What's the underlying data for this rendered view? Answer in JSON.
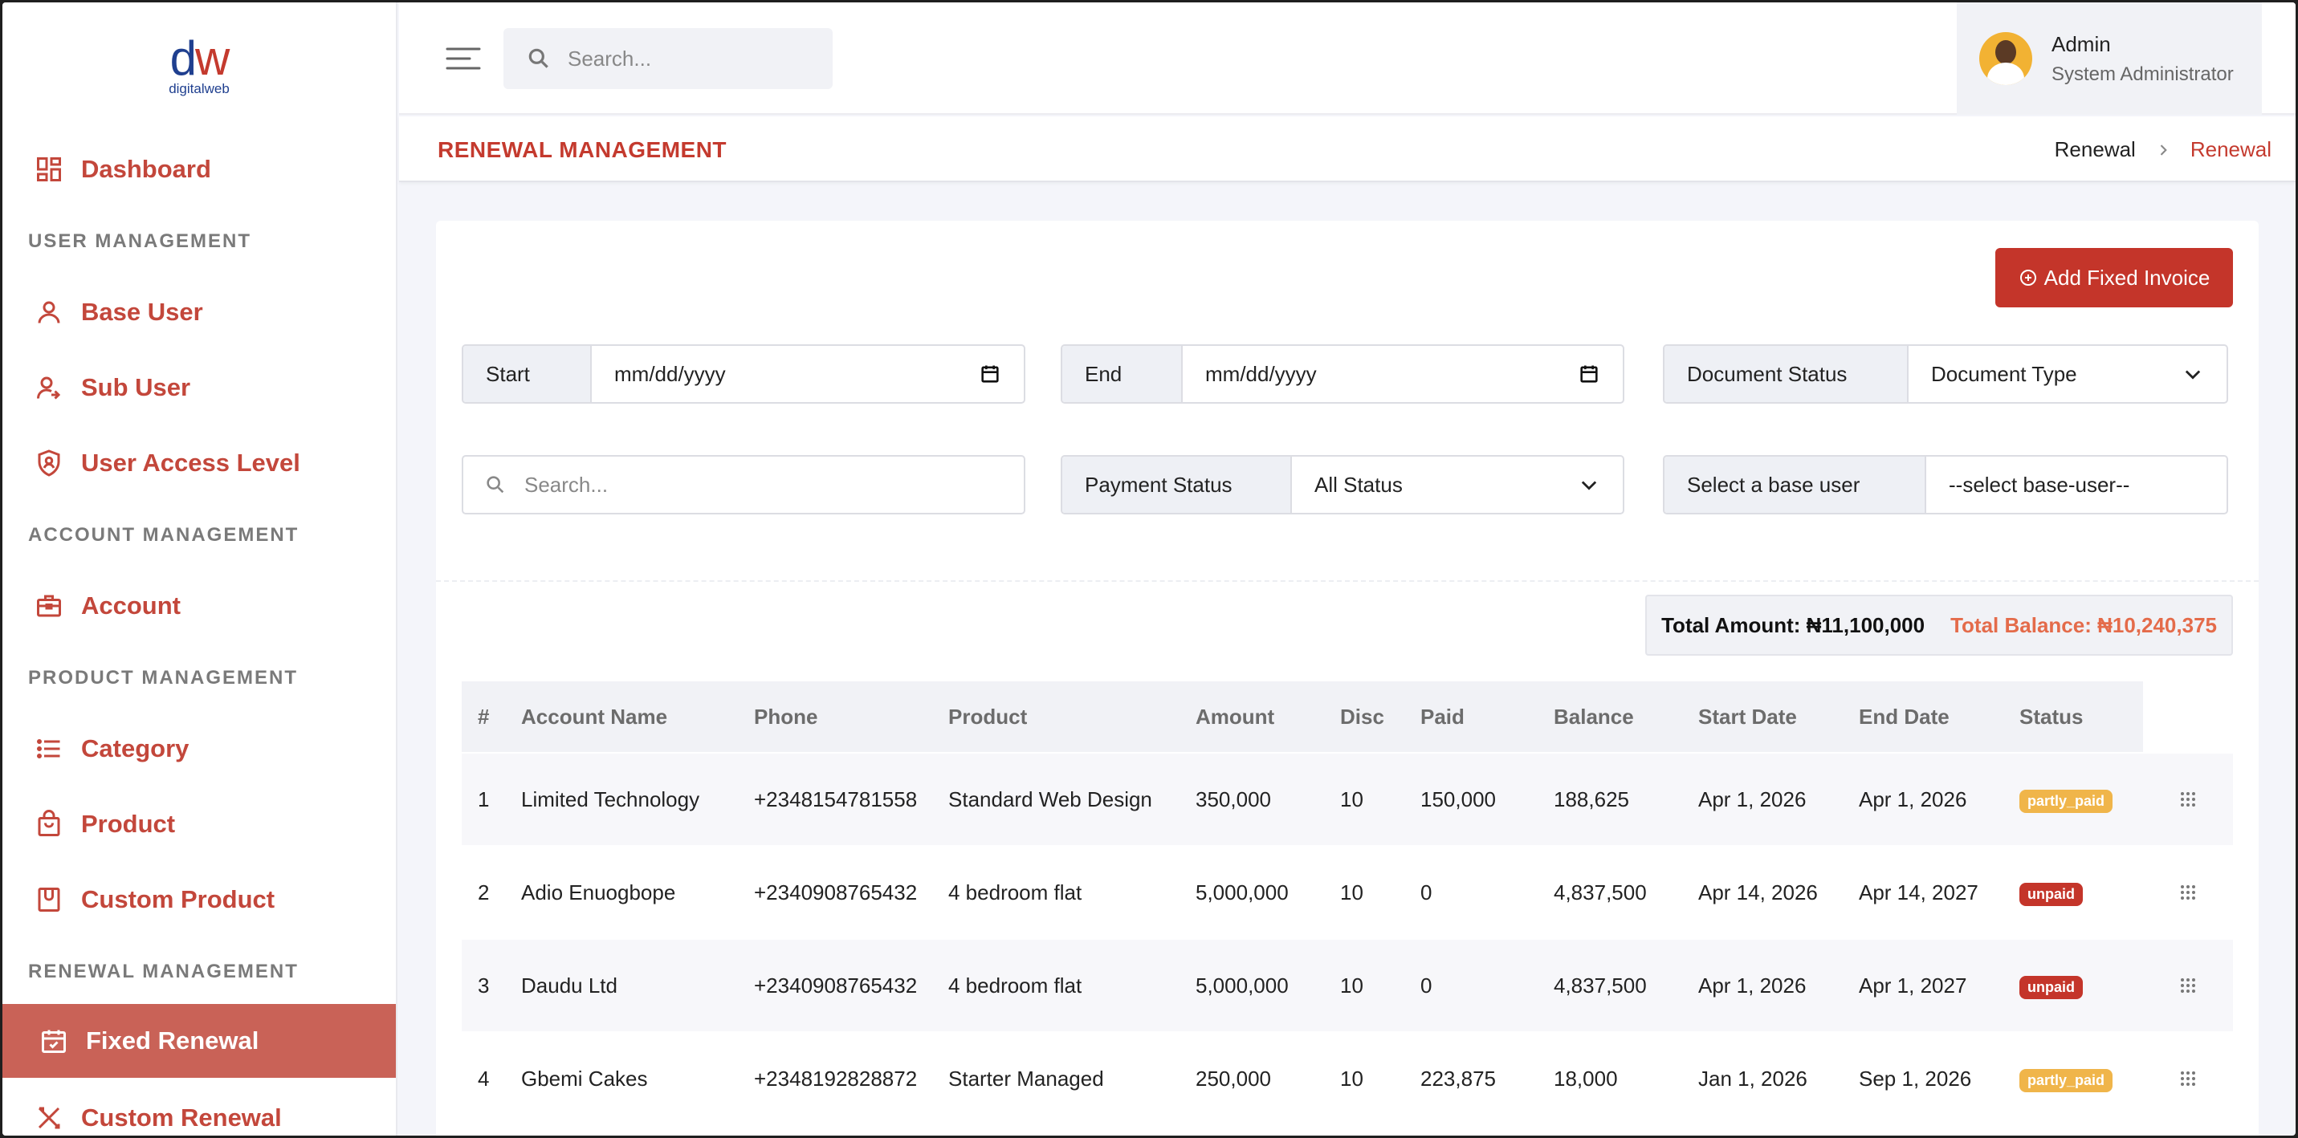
{
  "logo": {
    "mark_d": "d",
    "mark_w": "w",
    "text": "digitalweb"
  },
  "sidebar": {
    "items": [
      {
        "label": "Dashboard",
        "icon": "dashboard-icon"
      },
      {
        "label": "Base User",
        "icon": "user-icon"
      },
      {
        "label": "Sub User",
        "icon": "user-plus-icon"
      },
      {
        "label": "User Access Level",
        "icon": "shield-user-icon"
      },
      {
        "label": "Account",
        "icon": "briefcase-icon"
      },
      {
        "label": "Category",
        "icon": "list-icon"
      },
      {
        "label": "Product",
        "icon": "bag-icon"
      },
      {
        "label": "Custom Product",
        "icon": "box-icon"
      },
      {
        "label": "Fixed Renewal",
        "icon": "calendar-icon"
      },
      {
        "label": "Custom Renewal",
        "icon": "tools-icon"
      }
    ],
    "sections": [
      "USER MANAGEMENT",
      "ACCOUNT MANAGEMENT",
      "PRODUCT MANAGEMENT",
      "RENEWAL MANAGEMENT"
    ]
  },
  "header": {
    "search_placeholder": "Search...",
    "user_name": "Admin",
    "user_role": "System Administrator"
  },
  "page": {
    "title": "RENEWAL MANAGEMENT",
    "breadcrumb": [
      "Renewal",
      "Renewal"
    ]
  },
  "toolbar": {
    "add_label": "Add Fixed Invoice"
  },
  "filters": {
    "start_label": "Start",
    "start_value": "mm/dd/yyyy",
    "end_label": "End",
    "end_value": "mm/dd/yyyy",
    "doc_status_label": "Document Status",
    "doc_type_value": "Document Type",
    "search_placeholder": "Search...",
    "payment_status_label": "Payment Status",
    "payment_status_value": "All Status",
    "base_user_label": "Select a base user",
    "base_user_value": "--select base-user--"
  },
  "totals": {
    "amount": "Total Amount: ₦11,100,000",
    "balance": "Total Balance: ₦10,240,375"
  },
  "table": {
    "headers": [
      "#",
      "Account Name",
      "Phone",
      "Product",
      "Amount",
      "Disc",
      "Paid",
      "Balance",
      "Start Date",
      "End Date",
      "Status"
    ],
    "rows": [
      {
        "num": "1",
        "account": "Limited Technology",
        "phone": "+2348154781558",
        "product": "Standard Web Design",
        "amount": "350,000",
        "disc": "10",
        "paid": "150,000",
        "balance": "188,625",
        "start": "Apr 1, 2026",
        "end": "Apr 1, 2026",
        "status": "partly_paid"
      },
      {
        "num": "2",
        "account": "Adio Enuogbope",
        "phone": "+2340908765432",
        "product": "4 bedroom flat",
        "amount": "5,000,000",
        "disc": "10",
        "paid": "0",
        "balance": "4,837,500",
        "start": "Apr 14, 2026",
        "end": "Apr 14, 2027",
        "status": "unpaid"
      },
      {
        "num": "3",
        "account": "Daudu Ltd",
        "phone": "+2340908765432",
        "product": "4 bedroom flat",
        "amount": "5,000,000",
        "disc": "10",
        "paid": "0",
        "balance": "4,837,500",
        "start": "Apr 1, 2026",
        "end": "Apr 1, 2027",
        "status": "unpaid"
      },
      {
        "num": "4",
        "account": "Gbemi Cakes",
        "phone": "+2348192828872",
        "product": "Starter Managed",
        "amount": "250,000",
        "disc": "10",
        "paid": "223,875",
        "balance": "18,000",
        "start": "Jan 1, 2026",
        "end": "Sep 1, 2026",
        "status": "partly_paid"
      }
    ]
  },
  "colors": {
    "brand": "#c4352a",
    "active_nav": "#c96257",
    "balance": "#e46b4a",
    "partly_badge": "#f0b54a"
  }
}
